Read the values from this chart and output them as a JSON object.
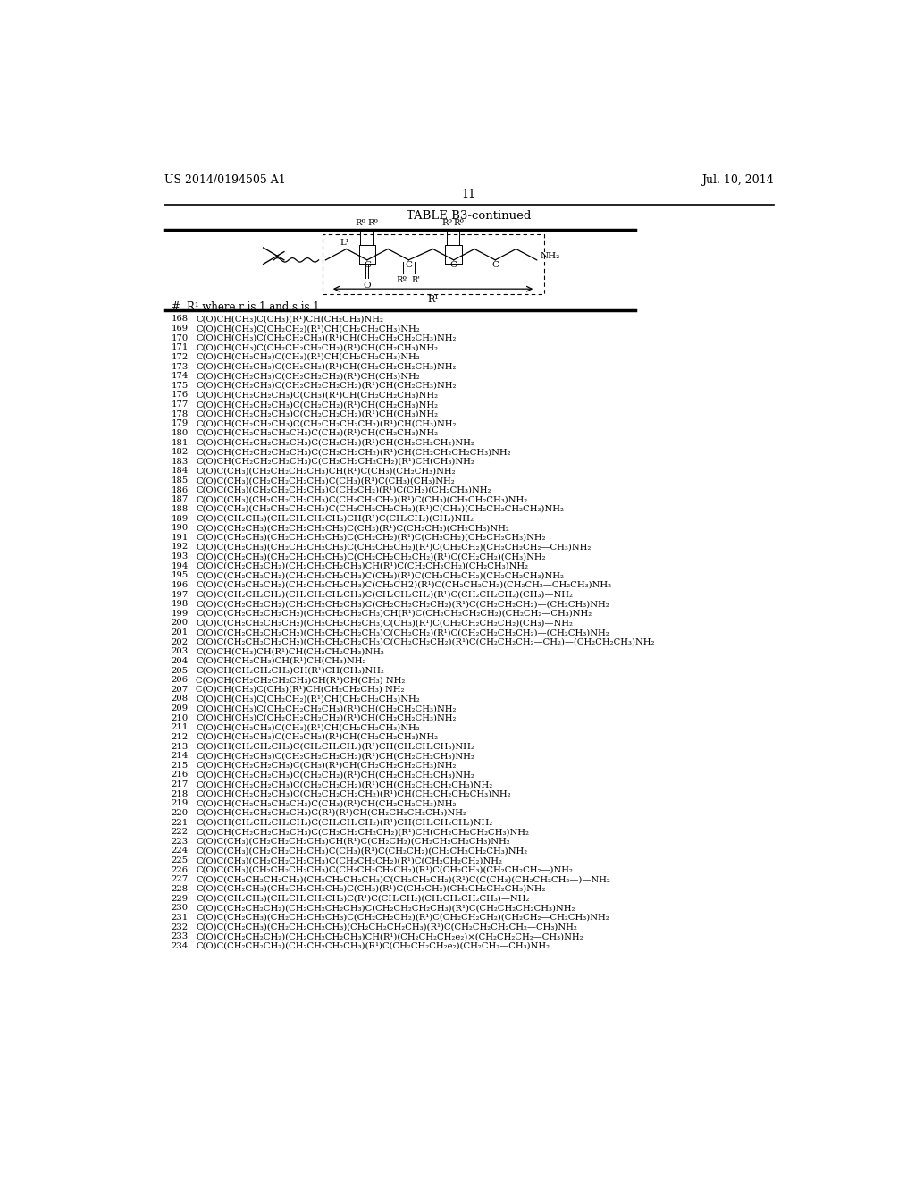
{
  "page_number": "11",
  "left_header": "US 2014/0194505 A1",
  "right_header": "Jul. 10, 2014",
  "table_title": "TABLE B3-continued",
  "column_header_num": "#",
  "column_header_r": "R¹ where r is 1 and s is 1",
  "entries": [
    [
      "168",
      "C(O)CH(CH₃)C(CH₃)(R¹)CH(CH₂CH₃)NH₂"
    ],
    [
      "169",
      "C(O)CH(CH₃)C(CH₂CH₂)(R¹)CH(CH₂CH₂CH₃)NH₂"
    ],
    [
      "170",
      "C(O)CH(CH₃)C(CH₂CH₂CH₃)(R¹)CH(CH₂CH₂CH₂CH₃)NH₂"
    ],
    [
      "171",
      "C(O)CH(CH₃)C(CH₂CH₂CH₂CH₂)(R¹)CH(CH₂CH₃)NH₂"
    ],
    [
      "172",
      "C(O)CH(CH₂CH₃)C(CH₃)(R¹)CH(CH₂CH₂CH₃)NH₂"
    ],
    [
      "173",
      "C(O)CH(CH₂CH₃)C(CH₂CH₂)(R¹)CH(CH₂CH₂CH₂CH₃)NH₂"
    ],
    [
      "174",
      "C(O)CH(CH₂CH₃)C(CH₂CH₂CH₂)(R¹)CH(CH₃)NH₂"
    ],
    [
      "175",
      "C(O)CH(CH₂CH₃)C(CH₂CH₂CH₂CH₂)(R¹)CH(CH₂CH₃)NH₂"
    ],
    [
      "176",
      "C(O)CH(CH₂CH₂CH₃)C(CH₃)(R¹)CH(CH₂CH₂CH₃)NH₂"
    ],
    [
      "177",
      "C(O)CH(CH₂CH₂CH₃)C(CH₂CH₂)(R¹)CH(CH₂CH₃)NH₂"
    ],
    [
      "178",
      "C(O)CH(CH₂CH₂CH₃)C(CH₂CH₂CH₂)(R¹)CH(CH₃)NH₂"
    ],
    [
      "179",
      "C(O)CH(CH₂CH₂CH₃)C(CH₂CH₂CH₂CH₂)(R¹)CH(CH₃)NH₂"
    ],
    [
      "180",
      "C(O)CH(CH₂CH₂CH₂CH₃)C(CH₃)(R¹)CH(CH₂CH₃)NH₂"
    ],
    [
      "181",
      "C(O)CH(CH₂CH₂CH₂CH₃)C(CH₂CH₂)(R¹)CH(CH₂CH₂CH₂)NH₂"
    ],
    [
      "182",
      "C(O)CH(CH₂CH₂CH₂CH₃)C(CH₂CH₂CH₂)(R¹)CH(CH₂CH₂CH₂CH₃)NH₂"
    ],
    [
      "183",
      "C(O)CH(CH₂CH₂CH₂CH₃)C(CH₂CH₂CH₂CH₂)(R¹)CH(CH₃)NH₂"
    ],
    [
      "184",
      "C(O)C(CH₃)(CH₂CH₂CH₂CH₃)CH(R¹)C(CH₃)(CH₂CH₃)NH₂"
    ],
    [
      "185",
      "C(O)C(CH₃)(CH₂CH₂CH₂CH₃)C(CH₃)(R¹)C(CH₃)(CH₃)NH₂"
    ],
    [
      "186",
      "C(O)C(CH₃)(CH₂CH₂CH₂CH₃)C(CH₂CH₂)(R¹)C(CH₃)(CH₂CH₃)NH₂"
    ],
    [
      "187",
      "C(O)C(CH₃)(CH₂CH₂CH₂CH₃)C(CH₂CH₂CH₂)(R¹)C(CH₃)(CH₂CH₂CH₃)NH₂"
    ],
    [
      "188",
      "C(O)C(CH₃)(CH₂CH₂CH₂CH₃)C(CH₂CH₂CH₂CH₂)(R¹)C(CH₃)(CH₂CH₂CH₂CH₃)NH₂"
    ],
    [
      "189",
      "C(O)C(CH₂CH₃)(CH₂CH₂CH₂CH₃)CH(R¹)C(CH₂CH₂)(CH₃)NH₂"
    ],
    [
      "190",
      "C(O)C(CH₂CH₃)(CH₂CH₂CH₂CH₃)C(CH₃)(R¹)C(CH₂CH₂)(CH₂CH₃)NH₂"
    ],
    [
      "191",
      "C(O)C(CH₂CH₃)(CH₂CH₂CH₂CH₃)C(CH₂CH₂)(R¹)C(CH₂CH₂)(CH₂CH₂CH₃)NH₂"
    ],
    [
      "192",
      "C(O)C(CH₂CH₃)(CH₂CH₂CH₂CH₃)C(CH₂CH₂CH₂)(R¹)C(CH₂CH₂)(CH₂CH₂CH₂—CH₃)NH₂"
    ],
    [
      "193",
      "C(O)C(CH₂CH₃)(CH₂CH₂CH₂CH₃)C(CH₂CH₂CH₂CH₂)(R¹)C(CH₂CH₂)(CH₃)NH₂"
    ],
    [
      "194",
      "C(O)C(CH₂CH₂CH₂)(CH₂CH₂CH₂CH₃)CH(R¹)C(CH₂CH₂CH₂)(CH₂CH₃)NH₂"
    ],
    [
      "195",
      "C(O)C(CH₂CH₂CH₂)(CH₂CH₂CH₂CH₃)C(CH₃)(R¹)C(CH₂CH₂CH₂)(CH₂CH₂CH₃)NH₂"
    ],
    [
      "196",
      "C(O)C(CH₂CH₂CH₂)(CH₂CH₂CH₂CH₃)C(CH₂CH2)(R¹)C(CH₂CH₂CH₂)(CH₂CH₂—CH₂CH₃)NH₂"
    ],
    [
      "197",
      "C(O)C(CH₂CH₂CH₂)(CH₂CH₂CH₂CH₃)C(CH₂CH₂CH₂)(R¹)C(CH₂CH₂CH₂)(CH₃)—NH₂"
    ],
    [
      "198",
      "C(O)C(CH₂CH₂CH₂)(CH₂CH₂CH₂CH₃)C(CH₂CH₂CH₂CH₂)(R¹)C(CH₂CH₂CH₂)—(CH₂CH₃)NH₂"
    ],
    [
      "199",
      "C(O)C(CH₂CH₂CH₂CH₂)(CH₂CH₂CH₂CH₃)CH(R¹)C(CH₂CH₂CH₂CH₂)(CH₂CH₂—CH₃)NH₂"
    ],
    [
      "200",
      "C(O)C(CH₂CH₂CH₂CH₂)(CH₂CH₂CH₂CH₃)C(CH₃)(R¹)C(CH₂CH₂CH₂CH₂)(CH₃)—NH₂"
    ],
    [
      "201",
      "C(O)C(CH₂CH₂CH₂CH₂)(CH₂CH₂CH₂CH₃)C(CH₂CH₂)(R¹)C(CH₂CH₂CH₂CH₂)—(CH₂CH₃)NH₂"
    ],
    [
      "202",
      "C(O)C(CH₂CH₂CH₂CH₂)(CH₂CH₂CH₂CH₃)C(CH₂CH₂CH₂)(R¹)C(CH₂CH₂CH₂—CH₂)—(CH₂CH₂CH₃)NH₂"
    ],
    [
      "203",
      "C(O)CH(CH₃)CH(R¹)CH(CH₂CH₂CH₃)NH₂"
    ],
    [
      "204",
      "C(O)CH(CH₂CH₃)CH(R¹)CH(CH₃)NH₂"
    ],
    [
      "205",
      "C(O)CH(CH₂CH₂CH₃)CH(R¹)CH(CH₃)NH₂"
    ],
    [
      "206",
      "C(O)CH(CH₂CH₂CH₂CH₃)CH(R¹)CH(CH₃) NH₂"
    ],
    [
      "207",
      "C(O)CH(CH₃)C(CH₃)(R¹)CH(CH₂CH₂CH₃) NH₂"
    ],
    [
      "208",
      "C(O)CH(CH₃)C(CH₂CH₂)(R¹)CH(CH₂CH₂CH₃)NH₂"
    ],
    [
      "209",
      "C(O)CH(CH₃)C(CH₂CH₂CH₂CH₃)(R¹)CH(CH₂CH₂CH₃)NH₂"
    ],
    [
      "210",
      "C(O)CH(CH₃)C(CH₂CH₂CH₂CH₂)(R¹)CH(CH₂CH₂CH₃)NH₂"
    ],
    [
      "211",
      "C(O)CH(CH₂CH₃)C(CH₃)(R¹)CH(CH₂CH₂CH₃)NH₂"
    ],
    [
      "212",
      "C(O)CH(CH₂CH₃)C(CH₂CH₂)(R¹)CH(CH₂CH₂CH₃)NH₂"
    ],
    [
      "213",
      "C(O)CH(CH₂CH₂CH₃)C(CH₂CH₂CH₂)(R¹)CH(CH₂CH₂CH₃)NH₂"
    ],
    [
      "214",
      "C(O)CH(CH₂CH₃)C(CH₂CH₂CH₂CH₂)(R¹)CH(CH₂CH₂CH₃)NH₂"
    ],
    [
      "215",
      "C(O)CH(CH₂CH₂CH₃)C(CH₃)(R¹)CH(CH₂CH₂CH₂CH₃)NH₂"
    ],
    [
      "216",
      "C(O)CH(CH₂CH₂CH₃)C(CH₂CH₂)(R¹)CH(CH₂CH₂CH₂CH₃)NH₂"
    ],
    [
      "217",
      "C(O)CH(CH₂CH₂CH₃)C(CH₂CH₂CH₂)(R¹)CH(CH₂CH₂CH₂CH₃)NH₂"
    ],
    [
      "218",
      "C(O)CH(CH₂CH₂CH₃)C(CH₂CH₂CH₂CH₂)(R¹)CH(CH₂CH₂CH₂CH₃)NH₂"
    ],
    [
      "219",
      "C(O)CH(CH₂CH₂CH₂CH₃)C(CH₃)(R¹)CH(CH₂CH₂CH₃)NH₂"
    ],
    [
      "220",
      "C(O)CH(CH₂CH₂CH₂CH₃)C(R¹)(R¹)CH(CH₂CH₂CH₂CH₃)NH₂"
    ],
    [
      "221",
      "C(O)CH(CH₂CH₂CH₂CH₃)C(CH₂CH₂CH₂)(R¹)CH(CH₂CH₂CH₂)NH₂"
    ],
    [
      "222",
      "C(O)CH(CH₂CH₂CH₂CH₃)C(CH₂CH₂CH₂CH₂)(R¹)CH(CH₂CH₂CH₂CH₃)NH₂"
    ],
    [
      "223",
      "C(O)C(CH₃)(CH₂CH₂CH₂CH₃)CH(R¹)C(CH₂CH₂)(CH₂CH₂CH₂CH₃)NH₂"
    ],
    [
      "224",
      "C(O)C(CH₃)(CH₂CH₂CH₂CH₃)C(CH₃)(R¹)C(CH₂CH₂)(CH₂CH₂CH₂CH₃)NH₂"
    ],
    [
      "225",
      "C(O)C(CH₃)(CH₂CH₂CH₂CH₃)C(CH₂CH₂CH₂)(R¹)C(CH₂CH₂CH₂)NH₂"
    ],
    [
      "226",
      "C(O)C(CH₃)(CH₂CH₂CH₂CH₃)C(CH₂CH₂CH₂CH₂)(R¹)C(CH₂CH₃)(CH₂CH₂CH₂—)NH₂"
    ],
    [
      "227",
      "C(O)C(CH₂CH₂CH₂CH₂)(CH₂CH₂CH₂CH₃)C(CH₂CH₂CH₂)(R¹)C(C(CH₃)(CH₂CH₂CH₂—)—NH₂"
    ],
    [
      "228",
      "C(O)C(CH₂CH₃)(CH₂CH₂CH₂CH₃)C(CH₃)(R¹)C(CH₂CH₂)(CH₂CH₂CH₂CH₃)NH₂"
    ],
    [
      "229",
      "C(O)C(CH₂CH₃)(CH₂CH₂CH₂CH₃)C(R¹)C(CH₂CH₂)(CH₂CH₂CH₂CH₃)—NH₂"
    ],
    [
      "230",
      "C(O)C(CH₂CH₂CH₂)(CH₂CH₂CH₂CH₃)C(CH₂CH₂CH₂CH₃)(R¹)C(CH₂CH₂CH₂CH₃)NH₂"
    ],
    [
      "231",
      "C(O)C(CH₂CH₃)(CH₂CH₂CH₂CH₃)C(CH₂CH₂CH₂)(R¹)C(CH₂CH₂CH₂)(CH₂CH₂—CH₂CH₃)NH₂"
    ],
    [
      "232",
      "C(O)C(CH₂CH₃)(CH₂CH₂CH₂CH₃)(CH₂CH₂CH₂CH₃)(R¹)C(CH₂CH₂CH₂CH₂—CH₃)NH₂"
    ],
    [
      "233",
      "C(O)C(CH₂CH₂CH₂)(CH₂CH₂CH₂CH₃)CH(R¹)(CH₂CH₂CH₂e₂)×(CH₂CH₂CH₂—CH₃)NH₂"
    ],
    [
      "234",
      "C(O)C(CH₂CH₂CH₂)(CH₂CH₂CH₂CH₃)(R¹)C(CH₂CH₂CH₂e₂)(CH₂CH₂—CH₃)NH₂"
    ]
  ],
  "background_color": "#ffffff",
  "text_color": "#000000"
}
